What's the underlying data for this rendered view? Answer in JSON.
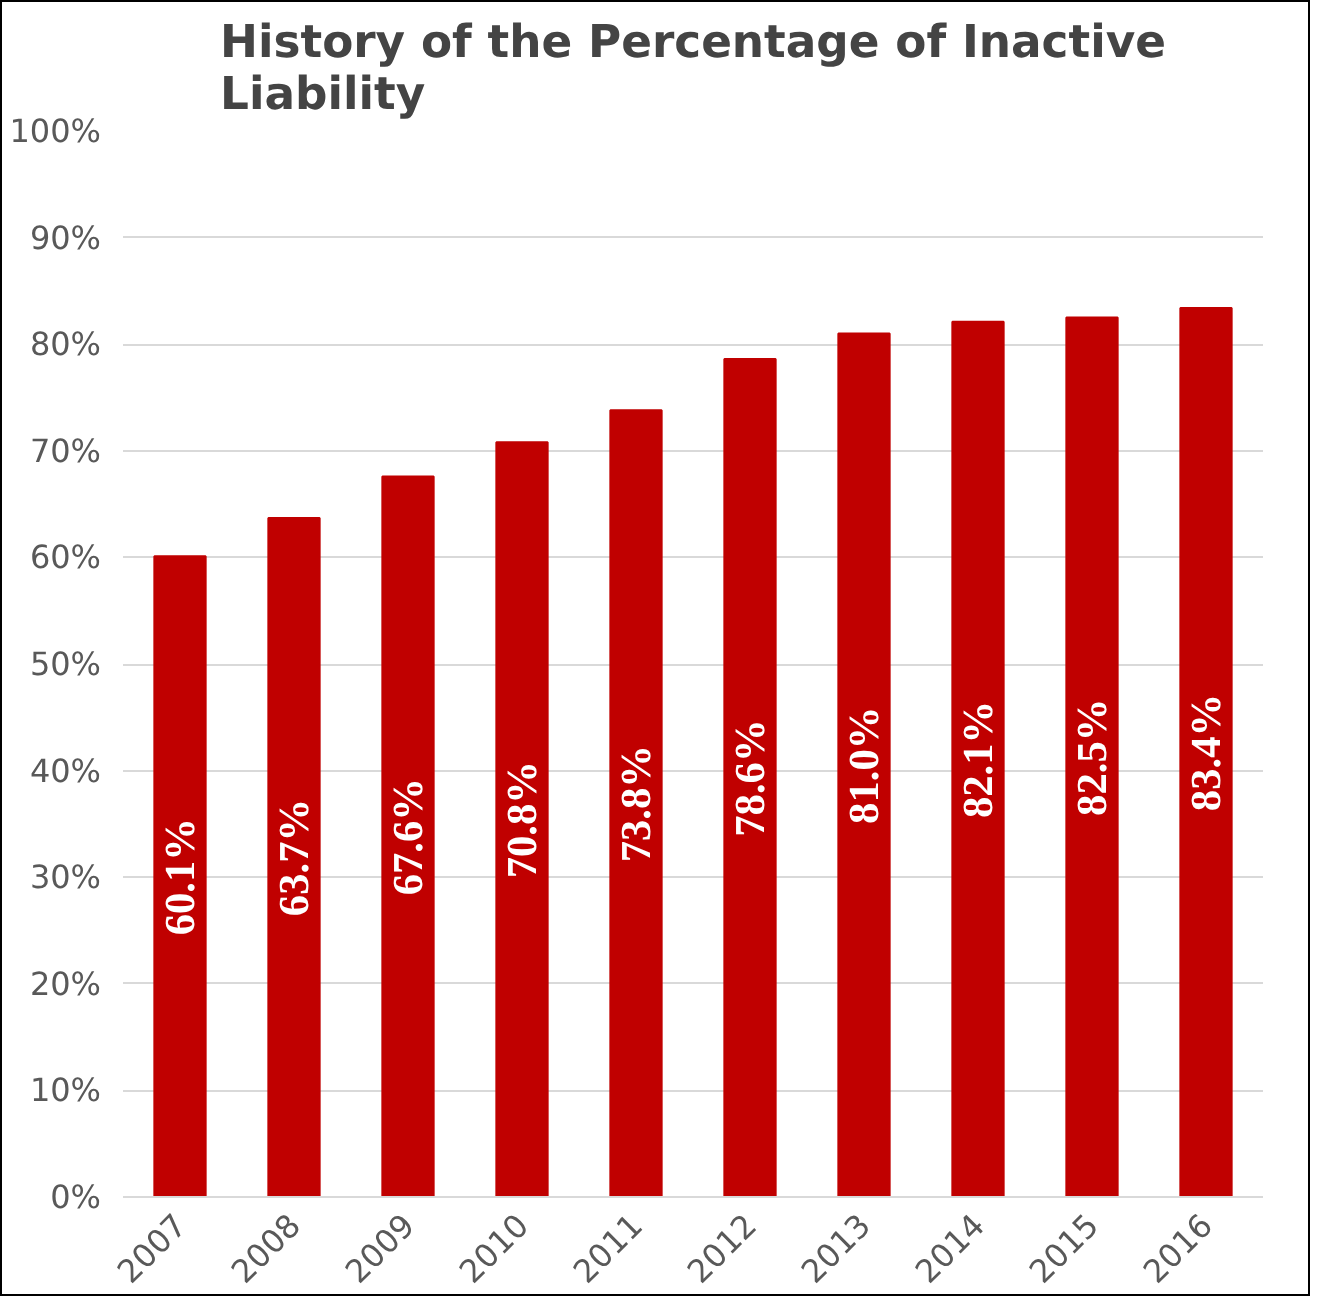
{
  "chart_data": {
    "type": "bar",
    "title": "History of the Percentage of Inactive Liability",
    "categories": [
      "2007",
      "2008",
      "2009",
      "2010",
      "2011",
      "2012",
      "2013",
      "2014",
      "2015",
      "2016"
    ],
    "values": [
      60.1,
      63.7,
      67.6,
      70.8,
      73.8,
      78.6,
      81.0,
      82.1,
      82.5,
      83.4
    ],
    "value_labels": [
      "60.1%",
      "63.7%",
      "67.6%",
      "70.8%",
      "73.8%",
      "78.6%",
      "81.0%",
      "82.1%",
      "82.5%",
      "83.4%"
    ],
    "color": "#c00000",
    "ylim": [
      0,
      100
    ],
    "yticks": [
      {
        "value": 0,
        "label": "0%"
      },
      {
        "value": 10,
        "label": "10%"
      },
      {
        "value": 20,
        "label": "20%"
      },
      {
        "value": 30,
        "label": "30%"
      },
      {
        "value": 40,
        "label": "40%"
      },
      {
        "value": 50,
        "label": "50%"
      },
      {
        "value": 60,
        "label": "60%"
      },
      {
        "value": 70,
        "label": "70%"
      },
      {
        "value": 80,
        "label": "80%"
      },
      {
        "value": 90,
        "label": "90%"
      },
      {
        "value": 100,
        "label": "100%"
      }
    ],
    "grid": "y"
  }
}
